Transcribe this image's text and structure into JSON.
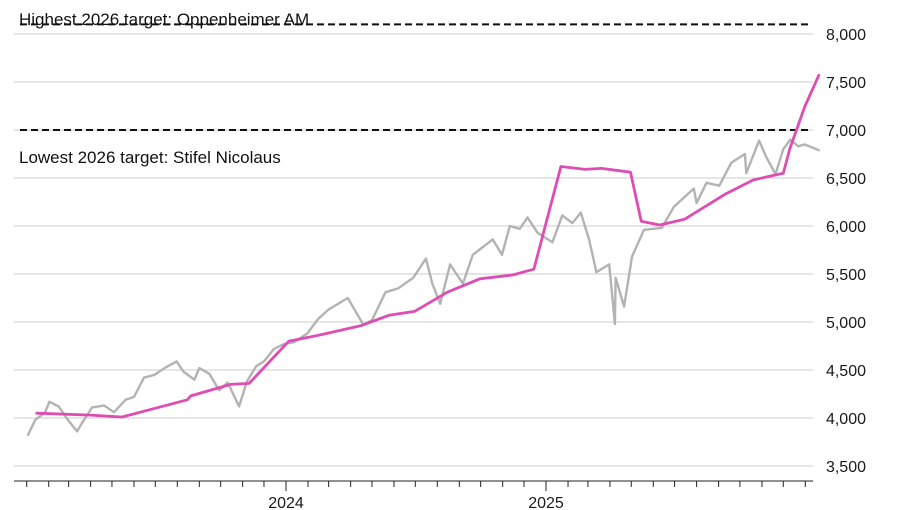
{
  "chart_data": {
    "type": "line",
    "title": "",
    "xlabel": "",
    "ylabel": "",
    "ylim": [
      3300,
      8200
    ],
    "y_ticks": [
      "8,000",
      "7,500",
      "7,000",
      "6,500",
      "6,000",
      "5,500",
      "5,000",
      "4,500",
      "4,000",
      "3,500"
    ],
    "y_tick_values": [
      8000,
      7500,
      7000,
      6500,
      6000,
      5500,
      5000,
      4500,
      4000,
      3500
    ],
    "x_ticks": [
      "2024",
      "2025"
    ],
    "x_range": [
      "2023-01-03",
      "2026-01-20"
    ],
    "x_major_dates": [
      "2024-01-01",
      "2025-01-01"
    ],
    "x_minor_ticks": [
      "2023-01-01",
      "2023-02-01",
      "2023-03-01",
      "2023-04-01",
      "2023-05-01",
      "2023-06-01",
      "2023-07-01",
      "2023-08-01",
      "2023-09-01",
      "2023-10-01",
      "2023-11-01",
      "2023-12-01",
      "2024-02-01",
      "2024-03-01",
      "2024-04-01",
      "2024-05-01",
      "2024-06-01",
      "2024-07-01",
      "2024-08-01",
      "2024-09-01",
      "2024-10-01",
      "2024-11-01",
      "2024-12-01",
      "2025-02-01",
      "2025-03-01",
      "2025-04-01",
      "2025-05-01",
      "2025-06-01",
      "2025-07-01",
      "2025-08-01",
      "2025-09-01",
      "2025-10-01",
      "2025-11-01",
      "2025-12-01",
      "2026-01-01"
    ],
    "reference_lines": [
      {
        "label": "Highest 2026 target: Oppenheimer AM",
        "value": 8100
      },
      {
        "label": "Lowest 2026 target: Stifel Nicolaus",
        "value": 7000
      }
    ],
    "series": [
      {
        "color": "#b3b3b3",
        "points": [
          [
            "2023-01-03",
            3825
          ],
          [
            "2023-01-13",
            3980
          ],
          [
            "2023-01-27",
            4060
          ],
          [
            "2023-02-02",
            4170
          ],
          [
            "2023-02-15",
            4120
          ],
          [
            "2023-02-28",
            3980
          ],
          [
            "2023-03-13",
            3860
          ],
          [
            "2023-03-20",
            3950
          ],
          [
            "2023-04-03",
            4110
          ],
          [
            "2023-04-20",
            4130
          ],
          [
            "2023-05-04",
            4060
          ],
          [
            "2023-05-20",
            4190
          ],
          [
            "2023-06-01",
            4220
          ],
          [
            "2023-06-15",
            4420
          ],
          [
            "2023-06-30",
            4450
          ],
          [
            "2023-07-14",
            4520
          ],
          [
            "2023-07-31",
            4590
          ],
          [
            "2023-08-10",
            4480
          ],
          [
            "2023-08-25",
            4400
          ],
          [
            "2023-09-01",
            4520
          ],
          [
            "2023-09-15",
            4460
          ],
          [
            "2023-09-29",
            4290
          ],
          [
            "2023-10-11",
            4370
          ],
          [
            "2023-10-27",
            4120
          ],
          [
            "2023-11-07",
            4380
          ],
          [
            "2023-11-20",
            4540
          ],
          [
            "2023-12-01",
            4590
          ],
          [
            "2023-12-15",
            4720
          ],
          [
            "2023-12-29",
            4770
          ],
          [
            "2024-01-12",
            4790
          ],
          [
            "2024-01-31",
            4880
          ],
          [
            "2024-02-15",
            5030
          ],
          [
            "2024-03-01",
            5130
          ],
          [
            "2024-03-28",
            5250
          ],
          [
            "2024-04-19",
            4970
          ],
          [
            "2024-05-01",
            5020
          ],
          [
            "2024-05-20",
            5310
          ],
          [
            "2024-06-07",
            5350
          ],
          [
            "2024-06-28",
            5460
          ],
          [
            "2024-07-16",
            5660
          ],
          [
            "2024-07-25",
            5400
          ],
          [
            "2024-08-05",
            5190
          ],
          [
            "2024-08-19",
            5600
          ],
          [
            "2024-09-06",
            5400
          ],
          [
            "2024-09-20",
            5700
          ],
          [
            "2024-10-18",
            5860
          ],
          [
            "2024-10-31",
            5700
          ],
          [
            "2024-11-11",
            6000
          ],
          [
            "2024-11-25",
            5970
          ],
          [
            "2024-12-06",
            6090
          ],
          [
            "2024-12-20",
            5930
          ],
          [
            "2025-01-10",
            5830
          ],
          [
            "2025-01-24",
            6110
          ],
          [
            "2025-02-07",
            6030
          ],
          [
            "2025-02-19",
            6140
          ],
          [
            "2025-03-03",
            5850
          ],
          [
            "2025-03-13",
            5520
          ],
          [
            "2025-03-31",
            5600
          ],
          [
            "2025-04-08",
            4980
          ],
          [
            "2025-04-09",
            5460
          ],
          [
            "2025-04-21",
            5160
          ],
          [
            "2025-05-02",
            5680
          ],
          [
            "2025-05-19",
            5960
          ],
          [
            "2025-06-13",
            5980
          ],
          [
            "2025-06-30",
            6200
          ],
          [
            "2025-07-28",
            6390
          ],
          [
            "2025-08-01",
            6240
          ],
          [
            "2025-08-15",
            6450
          ],
          [
            "2025-09-02",
            6420
          ],
          [
            "2025-09-19",
            6660
          ],
          [
            "2025-10-08",
            6750
          ],
          [
            "2025-10-10",
            6550
          ],
          [
            "2025-10-28",
            6890
          ],
          [
            "2025-11-07",
            6720
          ],
          [
            "2025-11-20",
            6540
          ],
          [
            "2025-12-01",
            6800
          ],
          [
            "2025-12-11",
            6900
          ],
          [
            "2025-12-22",
            6830
          ],
          [
            "2025-12-31",
            6850
          ],
          [
            "2026-01-20",
            6790
          ]
        ]
      },
      {
        "color": "#de4db3",
        "points": [
          [
            "2023-01-15",
            4050
          ],
          [
            "2023-04-01",
            4030
          ],
          [
            "2023-05-15",
            4010
          ],
          [
            "2023-08-15",
            4190
          ],
          [
            "2023-08-20",
            4230
          ],
          [
            "2023-10-15",
            4350
          ],
          [
            "2023-11-10",
            4360
          ],
          [
            "2024-01-05",
            4800
          ],
          [
            "2024-02-15",
            4860
          ],
          [
            "2024-04-15",
            4960
          ],
          [
            "2024-05-25",
            5070
          ],
          [
            "2024-06-30",
            5110
          ],
          [
            "2024-08-15",
            5310
          ],
          [
            "2024-09-30",
            5450
          ],
          [
            "2024-11-15",
            5490
          ],
          [
            "2024-12-15",
            5550
          ],
          [
            "2025-01-22",
            6620
          ],
          [
            "2025-02-25",
            6590
          ],
          [
            "2025-03-20",
            6600
          ],
          [
            "2025-04-30",
            6560
          ],
          [
            "2025-05-15",
            6050
          ],
          [
            "2025-06-10",
            6010
          ],
          [
            "2025-07-15",
            6070
          ],
          [
            "2025-09-10",
            6330
          ],
          [
            "2025-10-20",
            6480
          ],
          [
            "2025-12-01",
            6550
          ],
          [
            "2025-12-10",
            6800
          ],
          [
            "2025-12-31",
            7240
          ],
          [
            "2026-01-20",
            7570
          ]
        ]
      }
    ]
  }
}
